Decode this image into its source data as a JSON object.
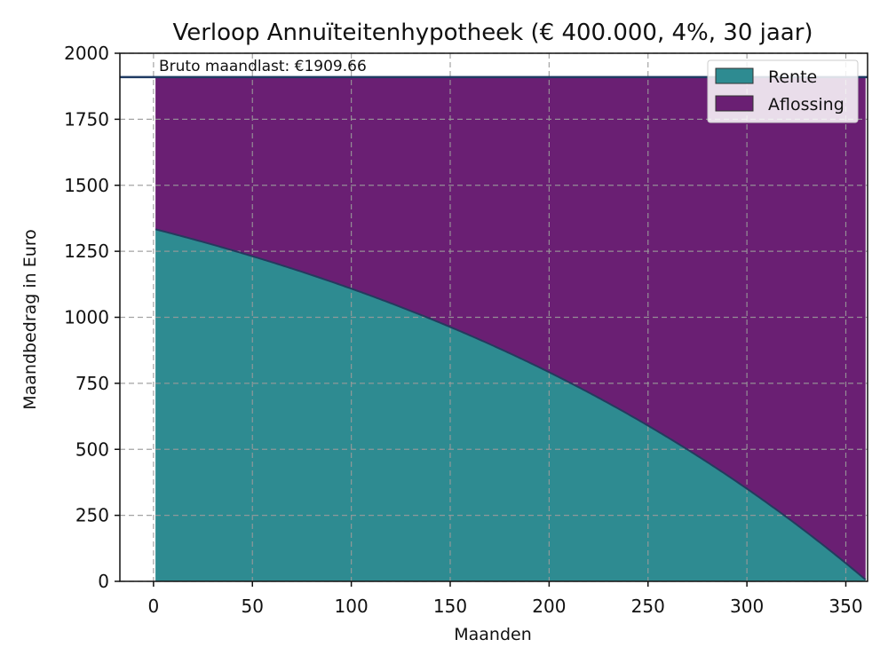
{
  "chart_data": {
    "type": "area",
    "title": "Verloop Annuïteitenhypotheek (€ 400.000, 4%, 30 jaar)",
    "xlabel": "Maanden",
    "ylabel": "Maandbedrag in Euro",
    "xlim": [
      -17,
      361
    ],
    "ylim": [
      0,
      2000
    ],
    "xticks": [
      0,
      50,
      100,
      150,
      200,
      250,
      300,
      350
    ],
    "yticks": [
      0,
      250,
      500,
      750,
      1000,
      1250,
      1500,
      1750,
      2000
    ],
    "grid": true,
    "stacked": true,
    "legend_position": "top-right",
    "loan": {
      "principal": 400000,
      "annual_rate": 0.04,
      "months": 360
    },
    "monthly_payment": 1909.66,
    "annotation": "Bruto maandlast: €1909.66",
    "x": [
      1,
      30,
      60,
      90,
      120,
      150,
      180,
      210,
      240,
      270,
      300,
      330,
      360
    ],
    "series": [
      {
        "name": "Rente",
        "color": "#2e8b91",
        "values": [
          1333,
          1277,
          1214,
          1145,
          1070,
          986,
          895,
          794,
          684,
          562,
          428,
          282,
          6
        ]
      },
      {
        "name": "Aflossing",
        "color": "#6a1f73",
        "values": [
          576,
          633,
          696,
          765,
          840,
          924,
          1015,
          1116,
          1226,
          1348,
          1482,
          1628,
          1903
        ]
      }
    ],
    "payment_line_color": "#1f3b63"
  }
}
